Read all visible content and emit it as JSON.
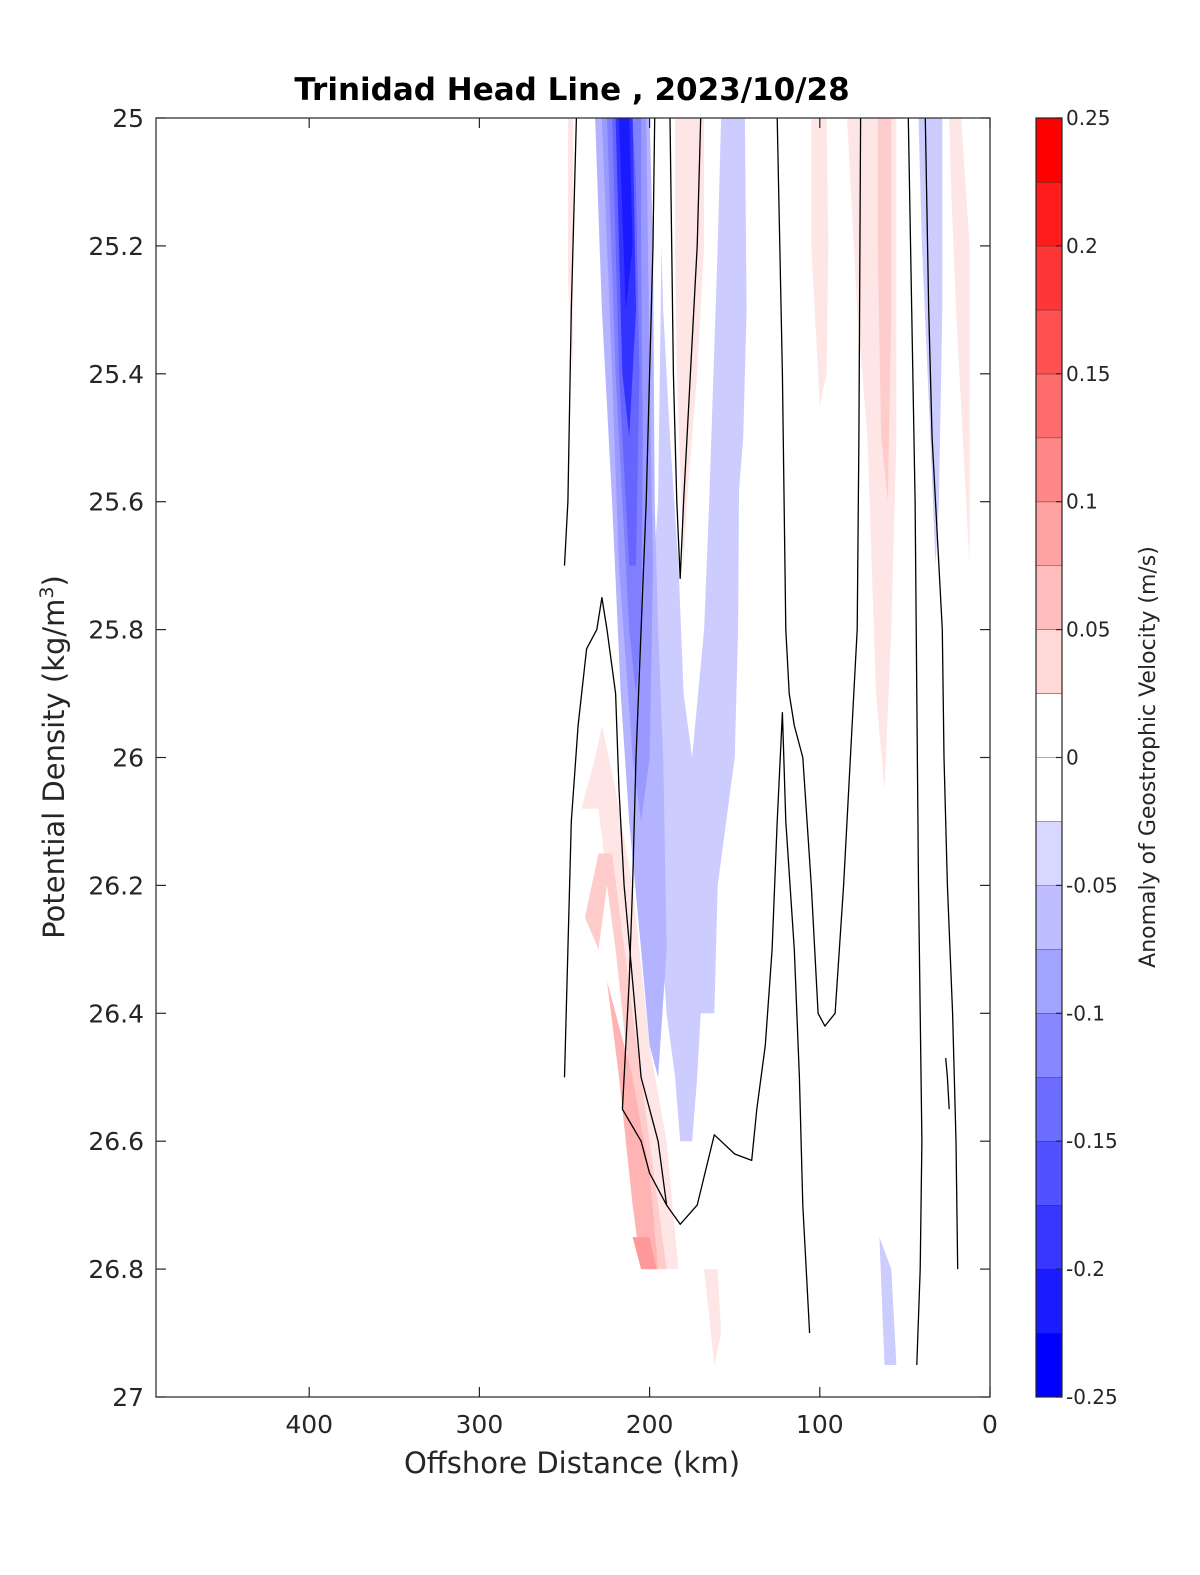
{
  "chart_data": {
    "type": "heatmap",
    "title": "Trinidad Head Line , 2023/10/28",
    "xlabel": "Offshore Distance (km)",
    "ylabel_main": "Potential Density (kg/m",
    "ylabel_sup": "3",
    "ylabel_close": ")",
    "colorbar_label": "Anomaly of Geostrophic Velocity (m/s)",
    "xlim": [
      490,
      0
    ],
    "ylim": [
      25,
      27
    ],
    "x_ticks": [
      400,
      300,
      200,
      100,
      0
    ],
    "y_ticks": [
      25,
      25.2,
      25.4,
      25.6,
      25.8,
      26,
      26.2,
      26.4,
      26.6,
      26.8,
      27
    ],
    "colorbar": {
      "min": -0.25,
      "max": 0.25,
      "step": 0.025,
      "ticks": [
        0.25,
        0.2,
        0.15,
        0.1,
        0.05,
        0,
        -0.05,
        -0.1,
        -0.15,
        -0.2,
        -0.25
      ],
      "colors": [
        "#0000ff",
        "#1a1aff",
        "#3333ff",
        "#4d4dff",
        "#6666ff",
        "#8080ff",
        "#9999ff",
        "#b3b3ff",
        "#ccccff",
        "#e6e6ff",
        "#ffffff",
        "#ffffff",
        "#ffe6e6",
        "#ffcccc",
        "#ffb3b3",
        "#ff9999",
        "#ff8080",
        "#ff6666",
        "#ff4d4d",
        "#ff3333",
        "#ff1a1a",
        "#ff0000"
      ]
    },
    "filled_regions": [
      {
        "level": 0.05,
        "points": [
          [
            248,
            25
          ],
          [
            245,
            25
          ],
          [
            245,
            25.4
          ],
          [
            248,
            25.25
          ]
        ]
      },
      {
        "level": -0.05,
        "points": [
          [
            233,
            25
          ],
          [
            215,
            25
          ],
          [
            205,
            25
          ],
          [
            195,
            25
          ],
          [
            193,
            25.2
          ],
          [
            195,
            25.6
          ],
          [
            200,
            25.8
          ],
          [
            198,
            26.0
          ],
          [
            195,
            26.2
          ],
          [
            190,
            26.4
          ],
          [
            185,
            26.5
          ],
          [
            182,
            26.6
          ],
          [
            175,
            26.6
          ],
          [
            172,
            26.5
          ],
          [
            170,
            26.4
          ],
          [
            162,
            26.4
          ],
          [
            160,
            26.2
          ],
          [
            150,
            26.0
          ],
          [
            148,
            25.8
          ],
          [
            147,
            25.4
          ],
          [
            148,
            25.0
          ],
          [
            158,
            25.0
          ],
          [
            160,
            25.2
          ],
          [
            165,
            25.6
          ],
          [
            168,
            25.8
          ],
          [
            175,
            26.0
          ],
          [
            180,
            25.9
          ],
          [
            183,
            25.7
          ],
          [
            188,
            25.5
          ],
          [
            192,
            25.3
          ],
          [
            195,
            25.0
          ],
          [
            200,
            25.0
          ],
          [
            205,
            25.0
          ],
          [
            210,
            25.0
          ],
          [
            222,
            25.0
          ]
        ]
      },
      {
        "level": -0.075,
        "points": [
          [
            232,
            25
          ],
          [
            228,
            25.3
          ],
          [
            222,
            25.6
          ],
          [
            217,
            25.9
          ],
          [
            212,
            26.1
          ],
          [
            205,
            26.3
          ],
          [
            200,
            26.45
          ],
          [
            195,
            26.5
          ],
          [
            190,
            26.3
          ],
          [
            192,
            26.0
          ],
          [
            195,
            25.8
          ],
          [
            197,
            25.6
          ],
          [
            198,
            25.2
          ],
          [
            200,
            25
          ],
          [
            215,
            25
          ]
        ]
      },
      {
        "level": -0.1,
        "points": [
          [
            228,
            25
          ],
          [
            222,
            25.4
          ],
          [
            218,
            25.7
          ],
          [
            210,
            26.0
          ],
          [
            205,
            26.1
          ],
          [
            200,
            26.0
          ],
          [
            198,
            25.7
          ],
          [
            200,
            25.4
          ],
          [
            202,
            25.0
          ]
        ]
      },
      {
        "level": -0.125,
        "points": [
          [
            225,
            25
          ],
          [
            220,
            25.4
          ],
          [
            212,
            25.8
          ],
          [
            208,
            25.9
          ],
          [
            205,
            25.8
          ],
          [
            204,
            25.5
          ],
          [
            205,
            25.2
          ],
          [
            205,
            25.0
          ]
        ]
      },
      {
        "level": -0.15,
        "points": [
          [
            222,
            25
          ],
          [
            218,
            25.4
          ],
          [
            212,
            25.7
          ],
          [
            208,
            25.7
          ],
          [
            206,
            25.4
          ],
          [
            208,
            25.1
          ],
          [
            210,
            25.0
          ]
        ]
      },
      {
        "level": -0.2,
        "points": [
          [
            220,
            25
          ],
          [
            216,
            25.4
          ],
          [
            212,
            25.5
          ],
          [
            208,
            25.3
          ],
          [
            210,
            25.0
          ]
        ]
      },
      {
        "level": -0.225,
        "points": [
          [
            218,
            25
          ],
          [
            214,
            25.3
          ],
          [
            210,
            25.2
          ],
          [
            212,
            25.0
          ]
        ]
      },
      {
        "level": 0.05,
        "points": [
          [
            185,
            25
          ],
          [
            168,
            25
          ],
          [
            168,
            25.2
          ],
          [
            172,
            25.4
          ],
          [
            178,
            25.6
          ],
          [
            180,
            25.7
          ],
          [
            184,
            25.4
          ],
          [
            185,
            25.2
          ]
        ]
      },
      {
        "level": -0.05,
        "points": [
          [
            150,
            25
          ],
          [
            144,
            25
          ],
          [
            143,
            25.3
          ],
          [
            145,
            25.5
          ],
          [
            148,
            25.6
          ],
          [
            150,
            25.4
          ],
          [
            152,
            25.2
          ]
        ]
      },
      {
        "level": 0.05,
        "points": [
          [
            105,
            25
          ],
          [
            96,
            25
          ],
          [
            95,
            25.2
          ],
          [
            96,
            25.4
          ],
          [
            100,
            25.45
          ],
          [
            105,
            25.2
          ]
        ]
      },
      {
        "level": 0.05,
        "points": [
          [
            84,
            25
          ],
          [
            55,
            25
          ],
          [
            55,
            25.5
          ],
          [
            58,
            25.8
          ],
          [
            62,
            26.05
          ],
          [
            67,
            25.9
          ],
          [
            72,
            25.5
          ],
          [
            78,
            25.3
          ],
          [
            82,
            25.1
          ]
        ]
      },
      {
        "level": 0.075,
        "points": [
          [
            66,
            25
          ],
          [
            58,
            25
          ],
          [
            58,
            25.3
          ],
          [
            60,
            25.6
          ],
          [
            64,
            25.5
          ],
          [
            66,
            25.2
          ]
        ]
      },
      {
        "level": -0.05,
        "points": [
          [
            42,
            25
          ],
          [
            28,
            25
          ],
          [
            28,
            25.3
          ],
          [
            30,
            25.6
          ],
          [
            32,
            25.7
          ],
          [
            35,
            25.5
          ],
          [
            40,
            25.2
          ]
        ]
      },
      {
        "level": 0.05,
        "points": [
          [
            24,
            25
          ],
          [
            17,
            25
          ],
          [
            12,
            25.2
          ],
          [
            12,
            25.7
          ],
          [
            16,
            25.5
          ],
          [
            20,
            25.3
          ],
          [
            23,
            25.1
          ]
        ]
      },
      {
        "level": 0.05,
        "points": [
          [
            240,
            26.08
          ],
          [
            230,
            26.08
          ],
          [
            220,
            26.3
          ],
          [
            210,
            26.5
          ],
          [
            205,
            26.6
          ],
          [
            195,
            26.8
          ],
          [
            183,
            26.8
          ],
          [
            190,
            26.6
          ],
          [
            200,
            26.45
          ],
          [
            210,
            26.2
          ],
          [
            220,
            26.05
          ],
          [
            228,
            25.95
          ],
          [
            232,
            26.0
          ]
        ]
      },
      {
        "level": 0.075,
        "points": [
          [
            238,
            26.25
          ],
          [
            230,
            26.3
          ],
          [
            225,
            26.2
          ],
          [
            220,
            26.3
          ],
          [
            212,
            26.5
          ],
          [
            203,
            26.8
          ],
          [
            190,
            26.8
          ],
          [
            200,
            26.6
          ],
          [
            210,
            26.4
          ],
          [
            222,
            26.15
          ],
          [
            230,
            26.15
          ]
        ]
      },
      {
        "level": 0.1,
        "points": [
          [
            225,
            26.35
          ],
          [
            218,
            26.5
          ],
          [
            210,
            26.7
          ],
          [
            205,
            26.8
          ],
          [
            195,
            26.8
          ],
          [
            200,
            26.65
          ],
          [
            210,
            26.5
          ],
          [
            220,
            26.4
          ]
        ]
      },
      {
        "level": 0.125,
        "points": [
          [
            210,
            26.75
          ],
          [
            205,
            26.8
          ],
          [
            196,
            26.8
          ],
          [
            200,
            26.75
          ]
        ]
      },
      {
        "level": 0.05,
        "points": [
          [
            168,
            26.8
          ],
          [
            162,
            26.95
          ],
          [
            158,
            26.9
          ],
          [
            160,
            26.8
          ]
        ]
      },
      {
        "level": -0.05,
        "points": [
          [
            65,
            26.75
          ],
          [
            62,
            26.95
          ],
          [
            55,
            26.95
          ],
          [
            58,
            26.8
          ]
        ]
      }
    ],
    "contours_zero": [
      {
        "points": [
          [
            250,
            25.7
          ],
          [
            248,
            25.6
          ],
          [
            246,
            25.3
          ],
          [
            243,
            25.0
          ]
        ]
      },
      {
        "points": [
          [
            250,
            26.5
          ],
          [
            248,
            26.3
          ],
          [
            246,
            26.1
          ],
          [
            242,
            25.95
          ],
          [
            237,
            25.83
          ],
          [
            231,
            25.8
          ],
          [
            228,
            25.75
          ],
          [
            225,
            25.8
          ],
          [
            220,
            25.9
          ],
          [
            218,
            26.05
          ],
          [
            215,
            26.2
          ],
          [
            210,
            26.35
          ],
          [
            205,
            26.5
          ],
          [
            200,
            26.55
          ],
          [
            195,
            26.6
          ],
          [
            190,
            26.7
          ],
          [
            182,
            26.73
          ],
          [
            172,
            26.7
          ],
          [
            162,
            26.59
          ],
          [
            150,
            26.62
          ],
          [
            140,
            26.63
          ],
          [
            137,
            26.55
          ],
          [
            132,
            26.45
          ],
          [
            128,
            26.3
          ],
          [
            125,
            26.1
          ],
          [
            122,
            25.93
          ],
          [
            120,
            26.1
          ],
          [
            115,
            26.3
          ],
          [
            112,
            26.5
          ],
          [
            110,
            26.7
          ],
          [
            108,
            26.8
          ],
          [
            106,
            26.9
          ]
        ]
      },
      {
        "points": [
          [
            197,
            25.0
          ],
          [
            198,
            25.2
          ],
          [
            200,
            25.4
          ],
          [
            202,
            25.6
          ],
          [
            205,
            25.8
          ],
          [
            208,
            26.0
          ],
          [
            210,
            26.2
          ],
          [
            212,
            26.35
          ],
          [
            214,
            26.45
          ],
          [
            216,
            26.55
          ],
          [
            205,
            26.6
          ],
          [
            200,
            26.65
          ],
          [
            190,
            26.7
          ]
        ]
      },
      {
        "points": [
          [
            188,
            25.0
          ],
          [
            186,
            25.4
          ],
          [
            184,
            25.6
          ],
          [
            182,
            25.72
          ],
          [
            180,
            25.6
          ],
          [
            176,
            25.4
          ],
          [
            172,
            25.2
          ],
          [
            170,
            25.0
          ]
        ]
      },
      {
        "points": [
          [
            125,
            25.0
          ],
          [
            122,
            25.4
          ],
          [
            120,
            25.8
          ],
          [
            118,
            25.9
          ],
          [
            115,
            25.95
          ],
          [
            110,
            26.0
          ],
          [
            105,
            26.2
          ],
          [
            101,
            26.4
          ],
          [
            97,
            26.42
          ],
          [
            91,
            26.4
          ],
          [
            86,
            26.2
          ],
          [
            82,
            26.0
          ],
          [
            78,
            25.8
          ],
          [
            77,
            25.5
          ],
          [
            76,
            25.0
          ]
        ]
      },
      {
        "points": [
          [
            48,
            25.0
          ],
          [
            46,
            25.3
          ],
          [
            44,
            25.6
          ],
          [
            43,
            25.9
          ],
          [
            42,
            26.2
          ],
          [
            41,
            26.4
          ],
          [
            40,
            26.6
          ],
          [
            41,
            26.8
          ],
          [
            43,
            26.95
          ]
        ]
      },
      {
        "points": [
          [
            38,
            25.0
          ],
          [
            36,
            25.3
          ],
          [
            34,
            25.5
          ],
          [
            30,
            25.7
          ],
          [
            28,
            25.8
          ],
          [
            27,
            26.0
          ],
          [
            25,
            26.2
          ],
          [
            22,
            26.4
          ],
          [
            20,
            26.6
          ],
          [
            19,
            26.8
          ]
        ]
      },
      {
        "points": [
          [
            26,
            26.47
          ],
          [
            25,
            26.5
          ],
          [
            24,
            26.55
          ]
        ]
      }
    ]
  }
}
